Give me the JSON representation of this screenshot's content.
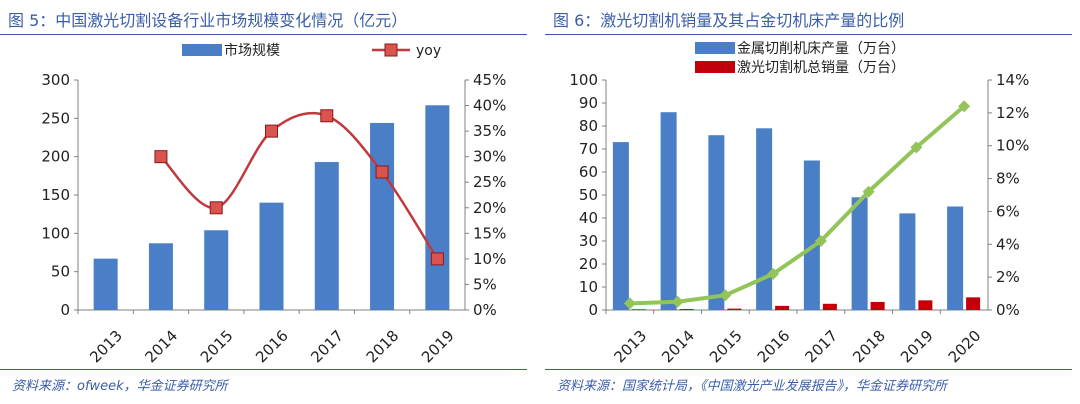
{
  "panels": {
    "left": {
      "title": "图 5：中国激光切割设备行业市场规模变化情况（亿元）",
      "source": "资料来源：ofweek，华金证券研究所"
    },
    "right": {
      "title": "图 6：激光切割机销量及其占金切机床产量的比例",
      "source": "资料来源：国家统计局，《中国激光产业发展报告》，华金证券研究所"
    }
  },
  "chart_data": [
    {
      "type": "bar",
      "title": "图 5：中国激光切割设备行业市场规模变化情况（亿元）",
      "categories": [
        "2013",
        "2014",
        "2015",
        "2016",
        "2017",
        "2018",
        "2019"
      ],
      "series": [
        {
          "name": "市场规模",
          "type": "bar",
          "axis": "left",
          "color": "#4a7ec6",
          "values": [
            67,
            87,
            104,
            140,
            193,
            244,
            267
          ]
        },
        {
          "name": "yoy",
          "type": "line",
          "axis": "right",
          "color": "#c0393f",
          "values": [
            null,
            30,
            20,
            35,
            38,
            27,
            10
          ]
        }
      ],
      "y_left": {
        "min": 0,
        "max": 300,
        "step": 50,
        "ticks": [
          "0",
          "50",
          "100",
          "150",
          "200",
          "250",
          "300"
        ]
      },
      "y_right": {
        "min": 0,
        "max": 45,
        "step": 5,
        "ticks": [
          "0%",
          "5%",
          "10%",
          "15%",
          "20%",
          "25%",
          "30%",
          "35%",
          "40%",
          "45%"
        ]
      },
      "legend_position": "top",
      "grid": false
    },
    {
      "type": "bar",
      "title": "图 6：激光切割机销量及其占金切机床产量的比例",
      "categories": [
        "2013",
        "2014",
        "2015",
        "2016",
        "2017",
        "2018",
        "2019",
        "2020"
      ],
      "series": [
        {
          "name": "金属切削机床产量（万台）",
          "type": "bar",
          "axis": "left",
          "color": "#4a7ec6",
          "values": [
            73,
            86,
            76,
            79,
            65,
            49,
            42,
            45
          ]
        },
        {
          "name": "激光切割机总销量（万台）",
          "type": "bar",
          "axis": "left",
          "color": "#c0000a",
          "values": [
            0.3,
            0.4,
            0.6,
            1.8,
            2.7,
            3.5,
            4.2,
            5.5
          ]
        },
        {
          "type": "line",
          "axis": "right",
          "color": "#92c45a",
          "values": [
            0.4,
            0.5,
            0.9,
            2.2,
            4.2,
            7.2,
            9.9,
            12.4
          ]
        }
      ],
      "y_left": {
        "min": 0,
        "max": 100,
        "step": 10,
        "ticks": [
          "0",
          "10",
          "20",
          "30",
          "40",
          "50",
          "60",
          "70",
          "80",
          "90",
          "100"
        ]
      },
      "y_right": {
        "min": 0,
        "max": 14,
        "step": 2,
        "ticks": [
          "0%",
          "2%",
          "4%",
          "6%",
          "8%",
          "10%",
          "12%",
          "14%"
        ]
      },
      "legend_position": "top",
      "grid": false
    }
  ]
}
